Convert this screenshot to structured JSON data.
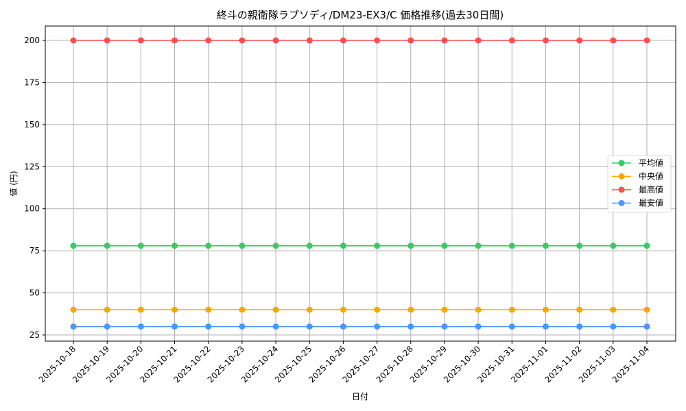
{
  "chart_data": {
    "type": "line",
    "title": "終斗の親衛隊ラプソディ/DM23-EX3/C 価格推移(過去30日間)",
    "xlabel": "日付",
    "ylabel": "値 (円)",
    "x": [
      "2025-10-18",
      "2025-10-19",
      "2025-10-20",
      "2025-10-21",
      "2025-10-22",
      "2025-10-23",
      "2025-10-24",
      "2025-10-25",
      "2025-10-26",
      "2025-10-27",
      "2025-10-28",
      "2025-10-29",
      "2025-10-30",
      "2025-10-31",
      "2025-11-01",
      "2025-11-02",
      "2025-11-03",
      "2025-11-04"
    ],
    "series": [
      {
        "name": "平均値",
        "color": "#33cc66",
        "values": [
          78,
          78,
          78,
          78,
          78,
          78,
          78,
          78,
          78,
          78,
          78,
          78,
          78,
          78,
          78,
          78,
          78,
          78
        ]
      },
      {
        "name": "中央値",
        "color": "#ffa500",
        "values": [
          40,
          40,
          40,
          40,
          40,
          40,
          40,
          40,
          40,
          40,
          40,
          40,
          40,
          40,
          40,
          40,
          40,
          40
        ]
      },
      {
        "name": "最高値",
        "color": "#ff4d4d",
        "values": [
          200,
          200,
          200,
          200,
          200,
          200,
          200,
          200,
          200,
          200,
          200,
          200,
          200,
          200,
          200,
          200,
          200,
          200
        ]
      },
      {
        "name": "最安値",
        "color": "#4d94ff",
        "values": [
          30,
          30,
          30,
          30,
          30,
          30,
          30,
          30,
          30,
          30,
          30,
          30,
          30,
          30,
          30,
          30,
          30,
          30
        ]
      }
    ],
    "yticks": [
      25,
      50,
      75,
      100,
      125,
      150,
      175,
      200
    ],
    "ylim": [
      21.5,
      208.5
    ],
    "grid": true,
    "legend_position": "center right"
  }
}
